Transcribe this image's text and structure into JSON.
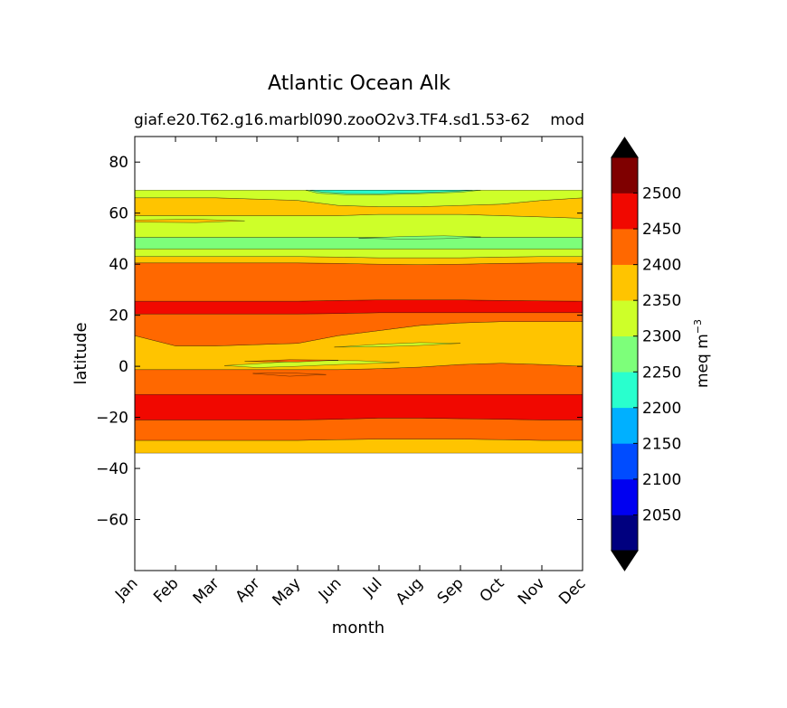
{
  "chart_data": {
    "type": "contourf",
    "title": "Atlantic Ocean Alk",
    "subtitle_left": "giaf.e20.T62.g16.marbl090.zooO2v3.TF4.sd1.53-62",
    "subtitle_right": "mod",
    "xlabel": "month",
    "ylabel": "latitude",
    "x_ticks": [
      "Jan",
      "Feb",
      "Mar",
      "Apr",
      "May",
      "Jun",
      "Jul",
      "Aug",
      "Sep",
      "Oct",
      "Nov",
      "Dec"
    ],
    "y_ticks": [
      -60,
      -40,
      -20,
      0,
      20,
      40,
      60,
      80
    ],
    "ylim": [
      -80,
      90
    ],
    "data_lat_range": [
      -34,
      69
    ],
    "colorbar": {
      "label": "meq m",
      "label_exponent": "−3",
      "levels": [
        2000,
        2050,
        2100,
        2150,
        2200,
        2250,
        2300,
        2350,
        2400,
        2450,
        2500,
        2550
      ],
      "tick_labels": [
        2050,
        2100,
        2150,
        2200,
        2250,
        2300,
        2350,
        2400,
        2450,
        2500
      ],
      "colors": [
        "#00007f",
        "#0000f1",
        "#004cff",
        "#00b0ff",
        "#29ffce",
        "#7dff7a",
        "#ceff29",
        "#ffc400",
        "#ff6800",
        "#f10800",
        "#7f0000"
      ],
      "extend_low_color": "#000000",
      "extend_high_color": "#000000"
    },
    "bands": [
      {
        "bin": 7,
        "lat_bottom": [
          -34,
          -34,
          -34,
          -34,
          -34,
          -34,
          -34,
          -34,
          -34,
          -34,
          -34,
          -34
        ],
        "lat_top": [
          -29,
          -29,
          -29,
          -29,
          -29,
          -28.7,
          -28.5,
          -28.5,
          -28.5,
          -28.7,
          -29,
          -29
        ]
      },
      {
        "bin": 8,
        "lat_bottom": [
          -29,
          -29,
          -29,
          -29,
          -29,
          -28.7,
          -28.5,
          -28.5,
          -28.5,
          -28.7,
          -29,
          -29
        ],
        "lat_top": [
          -21,
          -21,
          -21,
          -21,
          -21,
          -20.7,
          -20.3,
          -20.3,
          -20.5,
          -20.7,
          -21,
          -21
        ]
      },
      {
        "bin": 9,
        "lat_bottom": [
          -21,
          -21,
          -21,
          -21,
          -21,
          -20.7,
          -20.3,
          -20.3,
          -20.5,
          -20.7,
          -21,
          -21
        ],
        "lat_top": [
          -11,
          -11,
          -11,
          -11,
          -11,
          -11,
          -11,
          -11,
          -11,
          -11,
          -11,
          -11
        ]
      },
      {
        "bin": 8,
        "lat_bottom": [
          -11,
          -11,
          -11,
          -11,
          -11,
          -11,
          -11,
          -11,
          -11,
          -11,
          -11,
          -11
        ],
        "lat_top": [
          -1.3,
          -1.3,
          -1.3,
          -1.3,
          -1.3,
          -1.3,
          -0.9,
          -0.3,
          0.7,
          1.2,
          0.7,
          0
        ]
      },
      {
        "bin": 7,
        "lat_bottom": [
          -1.3,
          -1.3,
          -1.3,
          -1.3,
          -1.3,
          -1.3,
          -0.9,
          -0.3,
          0.7,
          1.2,
          0.7,
          0
        ],
        "lat_top": [
          12,
          8,
          8,
          8.5,
          9,
          12,
          14,
          16,
          17,
          17.5,
          17.5,
          17.5
        ]
      },
      {
        "bin": 8,
        "lat_bottom": [
          12,
          8,
          8,
          8.5,
          9,
          12,
          14,
          16,
          17,
          17.5,
          17.5,
          17.5
        ],
        "lat_top": [
          20.5,
          20.5,
          20.5,
          20.5,
          20.5,
          20.7,
          21,
          21,
          21,
          21,
          21,
          21
        ]
      },
      {
        "bin": 9,
        "lat_bottom": [
          20.5,
          20.5,
          20.5,
          20.5,
          20.5,
          20.7,
          21,
          21,
          21,
          21,
          21,
          21
        ],
        "lat_top": [
          25.5,
          25.5,
          25.5,
          25.5,
          25.5,
          25.8,
          26,
          26,
          26,
          25.8,
          25.6,
          25.5
        ]
      },
      {
        "bin": 8,
        "lat_bottom": [
          25.5,
          25.5,
          25.5,
          25.5,
          25.5,
          25.8,
          26,
          26,
          26,
          25.8,
          25.6,
          25.5
        ],
        "lat_top": [
          40.5,
          40.5,
          40.5,
          40.5,
          40.5,
          40.3,
          40,
          39.8,
          40,
          40.3,
          40.5,
          40.5
        ]
      },
      {
        "bin": 7,
        "lat_bottom": [
          40.5,
          40.5,
          40.5,
          40.5,
          40.5,
          40.3,
          40,
          39.8,
          40,
          40.3,
          40.5,
          40.5
        ],
        "lat_top": [
          43,
          43,
          43,
          43,
          43,
          42.8,
          42.5,
          42.5,
          42.5,
          42.8,
          43,
          43
        ]
      },
      {
        "bin": 6,
        "lat_bottom": [
          43,
          43,
          43,
          43,
          43,
          42.8,
          42.5,
          42.5,
          42.5,
          42.8,
          43,
          43
        ],
        "lat_top": [
          46,
          46,
          46,
          46,
          46,
          46,
          46,
          46,
          46,
          46,
          46,
          46
        ]
      },
      {
        "bin": 5,
        "lat_bottom": [
          46,
          46,
          46,
          46,
          46,
          46,
          46,
          46,
          46,
          46,
          46,
          46
        ],
        "lat_top": [
          50.5,
          50.5,
          50.5,
          50.5,
          50.5,
          50.5,
          50.5,
          50.5,
          50.5,
          50.5,
          50.5,
          50.5
        ]
      },
      {
        "bin": 6,
        "lat_bottom": [
          50.5,
          50.5,
          50.5,
          50.5,
          50.5,
          50.5,
          50.5,
          50.5,
          50.5,
          50.5,
          50.5,
          50.5
        ],
        "lat_top": [
          59,
          59,
          59,
          59,
          59,
          59,
          59.5,
          59.5,
          59.5,
          59,
          58.5,
          58
        ]
      },
      {
        "bin": 7,
        "lat_bottom": [
          59,
          59,
          59,
          59,
          59,
          59,
          59.5,
          59.5,
          59.5,
          59,
          58.5,
          58
        ],
        "lat_top": [
          66,
          66,
          66,
          65.5,
          65,
          63,
          62.5,
          62.5,
          63,
          63.5,
          65,
          66
        ]
      },
      {
        "bin": 6,
        "lat_bottom": [
          66,
          66,
          66,
          65.5,
          65,
          63,
          62.5,
          62.5,
          63,
          63.5,
          65,
          66
        ],
        "lat_top": [
          69,
          69,
          69,
          69,
          69,
          69,
          69,
          69,
          69,
          69,
          69,
          69
        ]
      }
    ],
    "patches": [
      {
        "bin": 5,
        "points": [
          [
            4.2,
            69
          ],
          [
            8.5,
            69
          ],
          [
            8.0,
            68.2
          ],
          [
            7.0,
            67.6
          ],
          [
            6.0,
            67.2
          ],
          [
            5.2,
            67.2
          ],
          [
            4.5,
            67.8
          ]
        ]
      },
      {
        "bin": 4,
        "points": [
          [
            4.3,
            69
          ],
          [
            8.3,
            69
          ],
          [
            7.8,
            68.5
          ],
          [
            7.0,
            68.0
          ],
          [
            6.0,
            67.6
          ],
          [
            5.2,
            67.7
          ],
          [
            4.6,
            68.3
          ]
        ]
      },
      {
        "bin": 7,
        "points": [
          [
            0,
            57.3
          ],
          [
            1.5,
            57.6
          ],
          [
            2.7,
            57.0
          ],
          [
            1.5,
            56.3
          ],
          [
            0,
            56.5
          ]
        ]
      },
      {
        "bin": 5,
        "points": [
          [
            5.5,
            50.2
          ],
          [
            6.7,
            50.9
          ],
          [
            7.6,
            51.1
          ],
          [
            8.5,
            50.7
          ],
          [
            7.6,
            50.0
          ],
          [
            6.6,
            49.8
          ]
        ]
      },
      {
        "bin": 6,
        "points": [
          [
            4.9,
            7.5
          ],
          [
            6.0,
            8.6
          ],
          [
            7.0,
            9.3
          ],
          [
            8.0,
            9.0
          ],
          [
            7.0,
            8.2
          ],
          [
            5.8,
            7.6
          ]
        ]
      },
      {
        "bin": 6,
        "points": [
          [
            2.2,
            0.3
          ],
          [
            3.0,
            1.0
          ],
          [
            4.2,
            2.3
          ],
          [
            5.5,
            2.2
          ],
          [
            6.5,
            1.5
          ],
          [
            5.0,
            0.7
          ],
          [
            4.0,
            0.0
          ],
          [
            3.0,
            -0.5
          ]
        ]
      },
      {
        "bin": 8,
        "points": [
          [
            2.7,
            1.9
          ],
          [
            3.8,
            2.6
          ],
          [
            5.0,
            2.4
          ],
          [
            4.0,
            1.7
          ]
        ]
      },
      {
        "bin": 8,
        "points": [
          [
            2.9,
            -2.8
          ],
          [
            3.7,
            -2.5
          ],
          [
            4.7,
            -3.2
          ],
          [
            3.8,
            -3.9
          ]
        ]
      }
    ]
  }
}
